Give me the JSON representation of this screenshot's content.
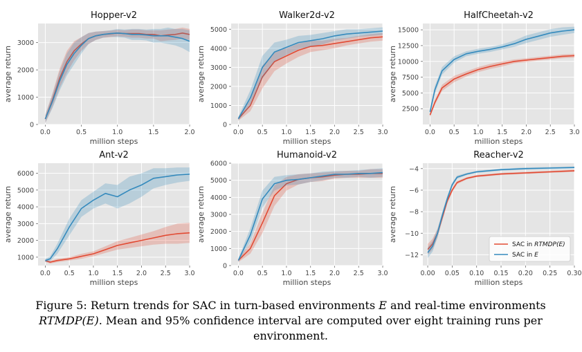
{
  "chart_data": [
    {
      "type": "line",
      "title": "Hopper-v2",
      "xlabel": "million steps",
      "ylabel": "average return",
      "xlim": [
        -0.1,
        2.0
      ],
      "ylim": [
        0,
        3700
      ],
      "xticks": [
        0.0,
        0.5,
        1.0,
        1.5,
        2.0
      ],
      "xtick_labels": [
        "0.0",
        "0.5",
        "1.0",
        "1.5",
        "2.0"
      ],
      "yticks": [
        0,
        1000,
        2000,
        3000
      ],
      "ytick_labels": [
        "0",
        "1000",
        "2000",
        "3000"
      ],
      "series": [
        {
          "name": "SAC in RTMDP(E)",
          "color": "#e24a33",
          "x": [
            0,
            0.1,
            0.2,
            0.3,
            0.4,
            0.5,
            0.6,
            0.7,
            0.8,
            0.9,
            1.0,
            1.1,
            1.2,
            1.3,
            1.4,
            1.5,
            1.6,
            1.7,
            1.8,
            1.9,
            2.0
          ],
          "y": [
            200,
            900,
            1700,
            2300,
            2700,
            2950,
            3150,
            3250,
            3300,
            3320,
            3350,
            3330,
            3330,
            3330,
            3300,
            3300,
            3250,
            3280,
            3300,
            3350,
            3300
          ],
          "band": [
            150,
            250,
            350,
            400,
            350,
            250,
            200,
            150,
            120,
            120,
            120,
            120,
            150,
            150,
            150,
            150,
            200,
            200,
            200,
            200,
            200
          ]
        },
        {
          "name": "SAC in E",
          "color": "#348abd",
          "x": [
            0,
            0.1,
            0.2,
            0.3,
            0.4,
            0.5,
            0.6,
            0.7,
            0.8,
            0.9,
            1.0,
            1.1,
            1.2,
            1.3,
            1.4,
            1.5,
            1.6,
            1.7,
            1.8,
            1.9,
            2.0
          ],
          "y": [
            200,
            850,
            1600,
            2200,
            2600,
            2900,
            3150,
            3250,
            3300,
            3330,
            3350,
            3330,
            3300,
            3300,
            3280,
            3250,
            3250,
            3250,
            3200,
            3150,
            3050
          ],
          "band": [
            150,
            250,
            350,
            400,
            400,
            300,
            200,
            150,
            120,
            120,
            150,
            150,
            200,
            200,
            200,
            250,
            250,
            300,
            300,
            350,
            400
          ]
        }
      ]
    },
    {
      "type": "line",
      "title": "Walker2d-v2",
      "xlabel": "million steps",
      "ylabel": "average return",
      "xlim": [
        -0.15,
        3.0
      ],
      "ylim": [
        0,
        5300
      ],
      "xticks": [
        0.0,
        0.5,
        1.0,
        1.5,
        2.0,
        2.5,
        3.0
      ],
      "xtick_labels": [
        "0.0",
        "0.5",
        "1.0",
        "1.5",
        "2.0",
        "2.5",
        "3.0"
      ],
      "yticks": [
        0,
        1000,
        2000,
        3000,
        4000,
        5000
      ],
      "ytick_labels": [
        "0",
        "1000",
        "2000",
        "3000",
        "4000",
        "5000"
      ],
      "series": [
        {
          "name": "SAC in RTMDP(E)",
          "color": "#e24a33",
          "x": [
            0,
            0.25,
            0.5,
            0.75,
            1.0,
            1.25,
            1.5,
            1.75,
            2.0,
            2.25,
            2.5,
            2.75,
            3.0
          ],
          "y": [
            300,
            1000,
            2500,
            3300,
            3600,
            3900,
            4100,
            4150,
            4250,
            4350,
            4450,
            4550,
            4600
          ],
          "band": [
            100,
            300,
            600,
            500,
            400,
            350,
            300,
            250,
            250,
            200,
            200,
            200,
            200
          ]
        },
        {
          "name": "SAC in E",
          "color": "#348abd",
          "x": [
            0,
            0.25,
            0.5,
            0.75,
            1.0,
            1.25,
            1.5,
            1.75,
            2.0,
            2.25,
            2.5,
            2.75,
            3.0
          ],
          "y": [
            300,
            1400,
            3000,
            3800,
            4050,
            4300,
            4400,
            4500,
            4650,
            4750,
            4800,
            4850,
            4900
          ],
          "band": [
            100,
            400,
            600,
            500,
            400,
            350,
            300,
            300,
            250,
            250,
            200,
            200,
            200
          ]
        }
      ]
    },
    {
      "type": "line",
      "title": "HalfCheetah-v2",
      "xlabel": "million steps",
      "ylabel": "average return",
      "xlim": [
        -0.15,
        3.0
      ],
      "ylim": [
        0,
        16000
      ],
      "xticks": [
        0.0,
        0.5,
        1.0,
        1.5,
        2.0,
        2.5,
        3.0
      ],
      "xtick_labels": [
        "0.0",
        "0.5",
        "1.0",
        "1.5",
        "2.0",
        "2.5",
        "3.0"
      ],
      "yticks": [
        2500,
        5000,
        7500,
        10000,
        12500,
        15000
      ],
      "ytick_labels": [
        "2500",
        "5000",
        "7500",
        "10000",
        "12500",
        "15000"
      ],
      "series": [
        {
          "name": "SAC in RTMDP(E)",
          "color": "#e24a33",
          "x": [
            0,
            0.1,
            0.25,
            0.5,
            0.75,
            1.0,
            1.25,
            1.5,
            1.75,
            2.0,
            2.25,
            2.5,
            2.75,
            3.0
          ],
          "y": [
            1500,
            3500,
            5800,
            7200,
            8000,
            8700,
            9200,
            9600,
            10000,
            10200,
            10400,
            10600,
            10800,
            10900
          ],
          "band": [
            300,
            400,
            500,
            500,
            400,
            400,
            400,
            400,
            300,
            300,
            300,
            300,
            300,
            300
          ]
        },
        {
          "name": "SAC in E",
          "color": "#348abd",
          "x": [
            0,
            0.1,
            0.25,
            0.5,
            0.75,
            1.0,
            1.25,
            1.5,
            1.75,
            2.0,
            2.25,
            2.5,
            2.75,
            3.0
          ],
          "y": [
            2000,
            5500,
            8500,
            10300,
            11200,
            11600,
            11900,
            12300,
            12800,
            13500,
            14000,
            14500,
            14800,
            15000
          ],
          "band": [
            400,
            600,
            600,
            500,
            400,
            400,
            400,
            400,
            500,
            600,
            600,
            600,
            600,
            500
          ]
        }
      ]
    },
    {
      "type": "line",
      "title": "Ant-v2",
      "xlabel": "million steps",
      "ylabel": "average return",
      "xlim": [
        -0.15,
        3.0
      ],
      "ylim": [
        500,
        6600
      ],
      "xticks": [
        0.0,
        0.5,
        1.0,
        1.5,
        2.0,
        2.5,
        3.0
      ],
      "xtick_labels": [
        "0.0",
        "0.5",
        "1.0",
        "1.5",
        "2.0",
        "2.5",
        "3.0"
      ],
      "yticks": [
        1000,
        2000,
        3000,
        4000,
        5000,
        6000
      ],
      "ytick_labels": [
        "1000",
        "2000",
        "3000",
        "4000",
        "5000",
        "6000"
      ],
      "series": [
        {
          "name": "SAC in RTMDP(E)",
          "color": "#e24a33",
          "x": [
            0,
            0.1,
            0.25,
            0.5,
            0.75,
            1.0,
            1.25,
            1.5,
            1.75,
            2.0,
            2.25,
            2.5,
            2.75,
            3.0
          ],
          "y": [
            800,
            700,
            800,
            900,
            1050,
            1200,
            1450,
            1700,
            1850,
            2000,
            2150,
            2300,
            2400,
            2450
          ],
          "band": [
            80,
            80,
            100,
            100,
            150,
            150,
            200,
            250,
            300,
            350,
            400,
            500,
            600,
            600
          ]
        },
        {
          "name": "SAC in E",
          "color": "#348abd",
          "x": [
            0,
            0.1,
            0.25,
            0.5,
            0.75,
            1.0,
            1.25,
            1.5,
            1.75,
            2.0,
            2.25,
            2.5,
            2.75,
            3.0
          ],
          "y": [
            800,
            900,
            1500,
            2800,
            3900,
            4400,
            4800,
            4600,
            5000,
            5300,
            5700,
            5800,
            5900,
            5950
          ],
          "band": [
            100,
            150,
            300,
            500,
            500,
            500,
            600,
            700,
            800,
            700,
            600,
            500,
            450,
            400
          ]
        }
      ]
    },
    {
      "type": "line",
      "title": "Humanoid-v2",
      "xlabel": "million steps",
      "ylabel": "average return",
      "xlim": [
        -0.15,
        3.0
      ],
      "ylim": [
        0,
        6000
      ],
      "xticks": [
        0.0,
        0.5,
        1.0,
        1.5,
        2.0,
        2.5,
        3.0
      ],
      "xtick_labels": [
        "0.0",
        "0.5",
        "1.0",
        "1.5",
        "2.0",
        "2.5",
        "3.0"
      ],
      "yticks": [
        0,
        1000,
        2000,
        3000,
        4000,
        5000,
        6000
      ],
      "ytick_labels": [
        "0",
        "1000",
        "2000",
        "3000",
        "4000",
        "5000",
        "6000"
      ],
      "series": [
        {
          "name": "SAC in RTMDP(E)",
          "color": "#e24a33",
          "x": [
            0,
            0.25,
            0.5,
            0.75,
            1.0,
            1.25,
            1.5,
            1.75,
            2.0,
            2.25,
            2.5,
            2.75,
            3.0
          ],
          "y": [
            300,
            1000,
            2500,
            4100,
            4800,
            5050,
            5150,
            5200,
            5300,
            5350,
            5350,
            5400,
            5400
          ],
          "band": [
            100,
            300,
            600,
            600,
            400,
            300,
            250,
            250,
            200,
            200,
            200,
            250,
            250
          ]
        },
        {
          "name": "SAC in E",
          "color": "#348abd",
          "x": [
            0,
            0.25,
            0.5,
            0.75,
            1.0,
            1.25,
            1.5,
            1.75,
            2.0,
            2.25,
            2.5,
            2.75,
            3.0
          ],
          "y": [
            300,
            1800,
            3900,
            4800,
            5000,
            5050,
            5150,
            5250,
            5350,
            5350,
            5400,
            5400,
            5450
          ],
          "band": [
            100,
            400,
            500,
            400,
            300,
            300,
            250,
            250,
            200,
            200,
            200,
            250,
            250
          ]
        }
      ]
    },
    {
      "type": "line",
      "title": "Reacher-v2",
      "xlabel": "million steps",
      "ylabel": "average return",
      "xlim": [
        -0.01,
        0.3
      ],
      "ylim": [
        -13,
        -3.5
      ],
      "xticks": [
        0.0,
        0.05,
        0.1,
        0.15,
        0.2,
        0.25,
        0.3
      ],
      "xtick_labels": [
        "0.00",
        "0.05",
        "0.10",
        "0.15",
        "0.20",
        "0.25",
        "0.30"
      ],
      "yticks": [
        -12,
        -10,
        -8,
        -6,
        -4
      ],
      "ytick_labels": [
        "−12",
        "−10",
        "−8",
        "−6",
        "−4"
      ],
      "legend": {
        "position": "lower-right",
        "entries": [
          "SAC in RTMDP(E)",
          "SAC in E"
        ]
      },
      "series": [
        {
          "name": "SAC in RTMDP(E)",
          "color": "#e24a33",
          "x": [
            0,
            0.01,
            0.02,
            0.03,
            0.04,
            0.05,
            0.06,
            0.08,
            0.1,
            0.15,
            0.2,
            0.25,
            0.3
          ],
          "y": [
            -11.5,
            -11.0,
            -10.0,
            -8.5,
            -7.0,
            -6.0,
            -5.3,
            -4.9,
            -4.7,
            -4.5,
            -4.4,
            -4.3,
            -4.2
          ],
          "band": [
            0.5,
            0.5,
            0.4,
            0.3,
            0.25,
            0.2,
            0.15,
            0.1,
            0.1,
            0.1,
            0.1,
            0.1,
            0.1
          ]
        },
        {
          "name": "SAC in E",
          "color": "#348abd",
          "x": [
            0,
            0.01,
            0.02,
            0.03,
            0.04,
            0.05,
            0.06,
            0.08,
            0.1,
            0.15,
            0.2,
            0.25,
            0.3
          ],
          "y": [
            -11.8,
            -11.2,
            -10.0,
            -8.3,
            -6.8,
            -5.5,
            -4.8,
            -4.5,
            -4.3,
            -4.1,
            -4.0,
            -3.95,
            -3.9
          ],
          "band": [
            0.5,
            0.5,
            0.4,
            0.3,
            0.25,
            0.2,
            0.15,
            0.1,
            0.1,
            0.1,
            0.1,
            0.1,
            0.1
          ]
        }
      ]
    }
  ],
  "legend": {
    "entry_1_prefix": "SAC in ",
    "entry_1_math": "RTMDP(E)",
    "entry_2_prefix": "SAC in ",
    "entry_2_math": "E"
  },
  "caption": {
    "prefix": "Figure 5:",
    "part1": " Return trends for SAC in turn-based environments ",
    "math1": "E",
    "part2": " and real-time environments ",
    "math2": "RTMDP(E)",
    "part3": ". Mean and 95% confidence interval are computed over eight training runs per environment."
  },
  "colors": {
    "red": "#e24a33",
    "blue": "#348abd",
    "plot_background": "#e5e5e5",
    "grid": "#ffffff"
  }
}
